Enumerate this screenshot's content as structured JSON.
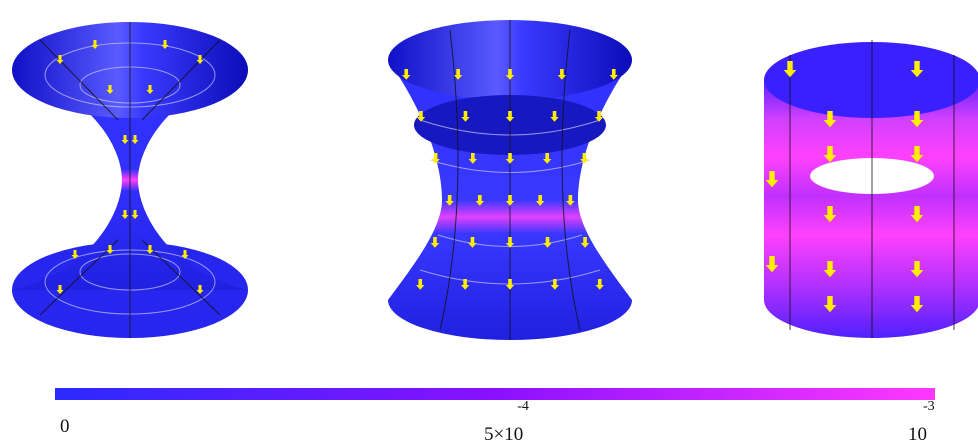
{
  "colorbar": {
    "min_label": "0",
    "mid_label": {
      "base": "5×10",
      "exponent": "-4"
    },
    "max_label": {
      "base": "10",
      "exponent": "-3"
    }
  }
}
